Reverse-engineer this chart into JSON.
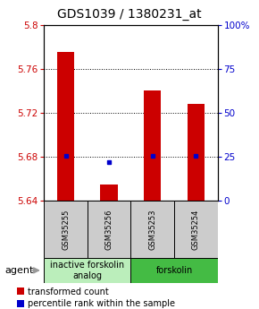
{
  "title": "GDS1039 / 1380231_at",
  "samples": [
    "GSM35255",
    "GSM35256",
    "GSM35253",
    "GSM35254"
  ],
  "red_values": [
    5.775,
    5.655,
    5.74,
    5.728
  ],
  "blue_values": [
    5.681,
    5.675,
    5.681,
    5.681
  ],
  "ylim_left": [
    5.64,
    5.8
  ],
  "ylim_right": [
    0,
    100
  ],
  "yticks_left": [
    5.64,
    5.68,
    5.72,
    5.76,
    5.8
  ],
  "yticks_right": [
    0,
    25,
    50,
    75,
    100
  ],
  "ytick_labels_right": [
    "0",
    "25",
    "50",
    "75",
    "100%"
  ],
  "groups": [
    {
      "label": "inactive forskolin\nanalog",
      "color": "#bbeebb",
      "samples": [
        0,
        1
      ]
    },
    {
      "label": "forskolin",
      "color": "#44bb44",
      "samples": [
        2,
        3
      ]
    }
  ],
  "bar_width": 0.4,
  "bar_color": "#cc0000",
  "dot_color": "#0000cc",
  "background_plot": "#ffffff",
  "background_label": "#cccccc",
  "title_fontsize": 10,
  "tick_fontsize": 7.5,
  "legend_fontsize": 7,
  "sample_fontsize": 6,
  "group_fontsize": 7
}
